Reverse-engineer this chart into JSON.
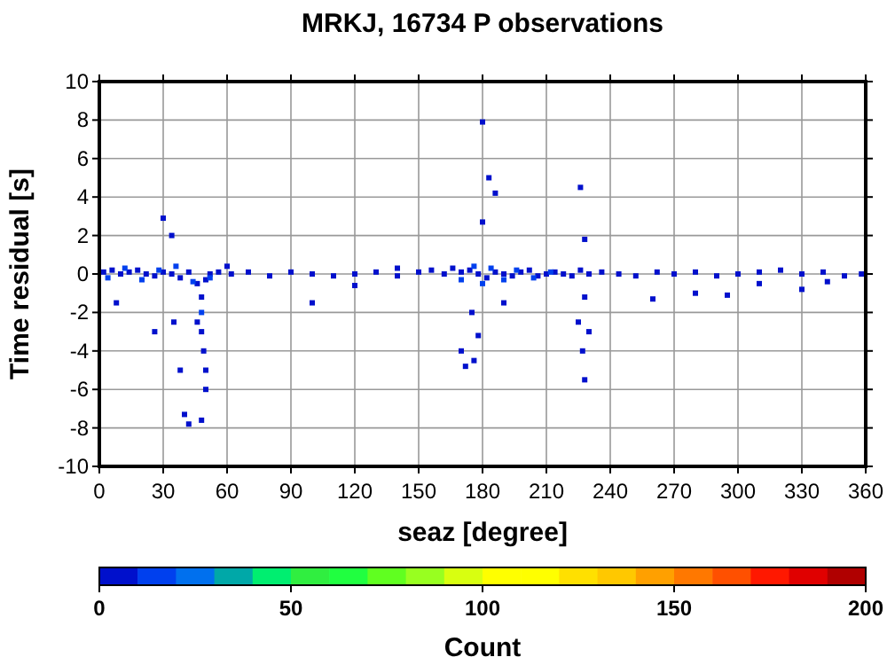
{
  "chart_data": {
    "type": "scatter",
    "title": "MRKJ, 16734 P observations",
    "xlabel": "seaz [degree]",
    "ylabel": "Time residual [s]",
    "clabel": "Count",
    "xlim": [
      0,
      360
    ],
    "xticks": [
      0,
      30,
      60,
      90,
      120,
      150,
      180,
      210,
      240,
      270,
      300,
      330,
      360
    ],
    "ylim": [
      -10,
      10
    ],
    "yticks": [
      -10,
      -8,
      -6,
      -4,
      -2,
      0,
      2,
      4,
      6,
      8,
      10
    ],
    "clim": [
      0,
      200
    ],
    "cticks": [
      0,
      50,
      100,
      150,
      200
    ],
    "grid": true,
    "marker": "square",
    "x": [
      2,
      6,
      10,
      14,
      18,
      22,
      26,
      30,
      34,
      38,
      42,
      46,
      48,
      50,
      52,
      56,
      62,
      70,
      80,
      90,
      100,
      110,
      120,
      130,
      140,
      150,
      156,
      162,
      166,
      170,
      174,
      178,
      182,
      186,
      190,
      194,
      198,
      202,
      206,
      210,
      214,
      218,
      222,
      226,
      230,
      236,
      244,
      252,
      262,
      270,
      280,
      290,
      300,
      310,
      320,
      330,
      340,
      350,
      358,
      4,
      12,
      20,
      28,
      36,
      44,
      48,
      52,
      170,
      176,
      180,
      184,
      190,
      196,
      204,
      212,
      48,
      49,
      50,
      50,
      46,
      35,
      38,
      40,
      42,
      48,
      30,
      34,
      8,
      26,
      170,
      172,
      176,
      178,
      180,
      183,
      186,
      180,
      175,
      225,
      227,
      228,
      226,
      228,
      230,
      190,
      260,
      280,
      295,
      330,
      310,
      342,
      100,
      60,
      140,
      120,
      228
    ],
    "values": [
      0.1,
      0.2,
      0,
      0.1,
      0.2,
      0,
      -0.1,
      0.1,
      0,
      -0.2,
      0.1,
      -0.5,
      -1.2,
      -0.3,
      0,
      0.1,
      0,
      0.1,
      -0.1,
      0.1,
      0,
      -0.1,
      0,
      0.1,
      -0.1,
      0.1,
      0.2,
      0,
      0.3,
      0.1,
      0.2,
      0,
      -0.2,
      0.1,
      0,
      -0.1,
      0.1,
      0.2,
      -0.1,
      0,
      0.1,
      0,
      -0.1,
      0.2,
      0,
      0.1,
      0,
      -0.1,
      0.1,
      0,
      0.1,
      -0.1,
      0,
      0.1,
      0.2,
      0,
      0.1,
      -0.1,
      0,
      -0.2,
      0.3,
      -0.3,
      0.2,
      0.4,
      -0.4,
      -2,
      -0.2,
      -0.3,
      0.4,
      -0.5,
      0.3,
      -0.3,
      0.2,
      -0.2,
      0.1,
      -3,
      -4,
      -5,
      -6,
      -2.5,
      -2.5,
      -5,
      -7.3,
      -7.8,
      -7.6,
      2.9,
      2,
      -1.5,
      -3,
      -4,
      -4.8,
      -4.5,
      -3.2,
      7.9,
      5,
      4.2,
      2.7,
      -2,
      -2.5,
      -4,
      -5.5,
      4.5,
      1.8,
      -3,
      -1.5,
      -1.3,
      -1,
      -1.1,
      -0.8,
      -0.5,
      -0.4,
      -1.5,
      0.4,
      0.3,
      -0.6,
      -1.2
    ],
    "cvalues": [
      5,
      5,
      5,
      5,
      5,
      5,
      5,
      5,
      5,
      5,
      5,
      5,
      5,
      5,
      5,
      5,
      5,
      5,
      5,
      5,
      5,
      5,
      5,
      5,
      5,
      5,
      5,
      5,
      5,
      5,
      5,
      5,
      5,
      5,
      5,
      5,
      5,
      5,
      5,
      5,
      5,
      5,
      5,
      5,
      5,
      5,
      5,
      5,
      5,
      5,
      5,
      5,
      5,
      5,
      5,
      5,
      5,
      5,
      5,
      15,
      15,
      15,
      15,
      15,
      15,
      15,
      15,
      15,
      15,
      15,
      15,
      15,
      15,
      15,
      15,
      5,
      5,
      5,
      5,
      5,
      5,
      5,
      5,
      5,
      5,
      5,
      5,
      5,
      5,
      5,
      5,
      5,
      5,
      5,
      5,
      5,
      5,
      5,
      5,
      5,
      5,
      5,
      5,
      5,
      5,
      5,
      5,
      5,
      5,
      5,
      5,
      5,
      5,
      5,
      5,
      5
    ]
  }
}
